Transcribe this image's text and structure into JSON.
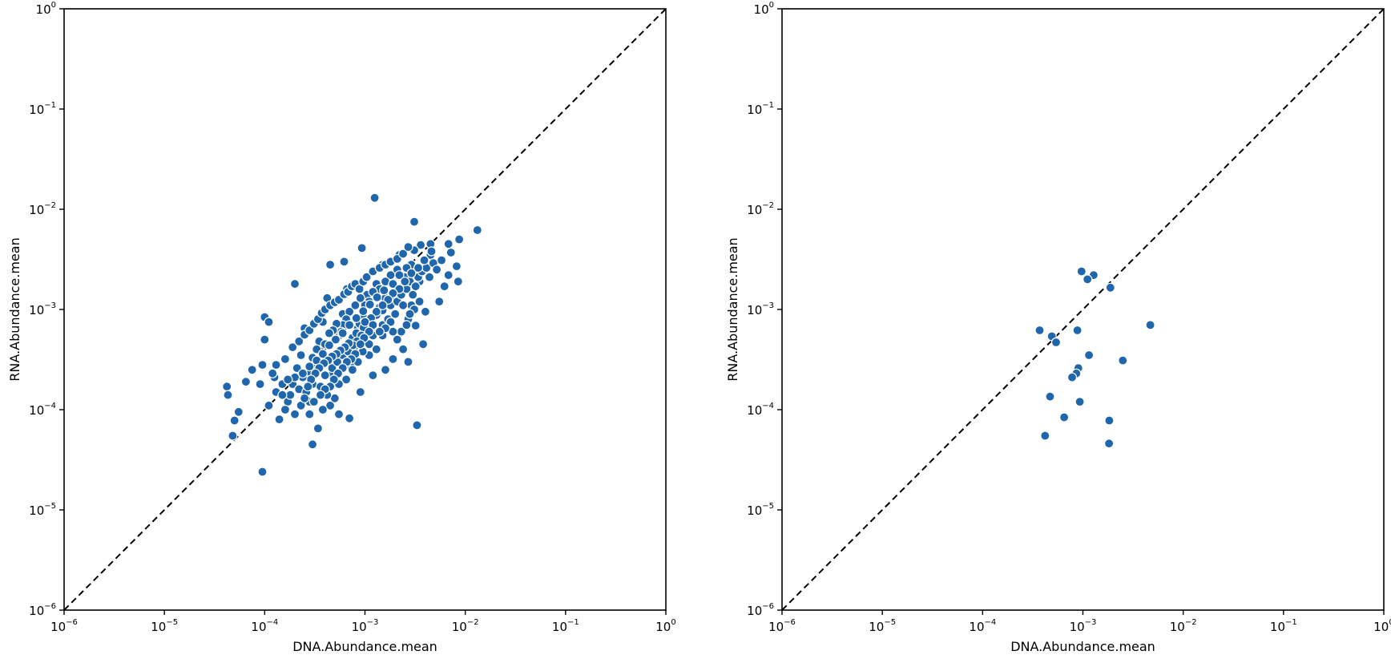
{
  "chart_data": [
    {
      "type": "scatter",
      "title": "",
      "xlabel": "DNA.Abundance.mean",
      "ylabel": "RNA.Abundance.mean",
      "xscale": "log",
      "yscale": "log",
      "xlim": [
        1e-06,
        1
      ],
      "ylim": [
        1e-06,
        1
      ],
      "xticks": [
        {
          "base": "10",
          "exp": "−6"
        },
        {
          "base": "10",
          "exp": "−5"
        },
        {
          "base": "10",
          "exp": "−4"
        },
        {
          "base": "10",
          "exp": "−3"
        },
        {
          "base": "10",
          "exp": "−2"
        },
        {
          "base": "10",
          "exp": "−1"
        },
        {
          "base": "10",
          "exp": "0"
        }
      ],
      "yticks": [
        {
          "base": "10",
          "exp": "−6"
        },
        {
          "base": "10",
          "exp": "−5"
        },
        {
          "base": "10",
          "exp": "−4"
        },
        {
          "base": "10",
          "exp": "−3"
        },
        {
          "base": "10",
          "exp": "−2"
        },
        {
          "base": "10",
          "exp": "−1"
        },
        {
          "base": "10",
          "exp": "0"
        }
      ],
      "reference_line": "y = x (dashed)",
      "grid": false,
      "marker_color": "#1f66ad",
      "points": [
        [
          0.0031,
          0.0075
        ],
        [
          0.00125,
          0.013
        ],
        [
          0.0132,
          0.0062
        ],
        [
          0.0087,
          0.005
        ],
        [
          0.0068,
          0.0045
        ],
        [
          0.0045,
          0.0045
        ],
        [
          0.0036,
          0.0044
        ],
        [
          0.0031,
          0.0039
        ],
        [
          0.0022,
          0.0035
        ],
        [
          0.0015,
          0.0028
        ],
        [
          0.00093,
          0.0041
        ],
        [
          0.00062,
          0.003
        ],
        [
          0.00045,
          0.0028
        ],
        [
          0.0045,
          0.0035
        ],
        [
          0.0072,
          0.0037
        ],
        [
          0.0082,
          0.0027
        ],
        [
          0.0068,
          0.0022
        ],
        [
          0.0062,
          0.0017
        ],
        [
          0.0085,
          0.0019
        ],
        [
          0.0035,
          0.0019
        ],
        [
          0.0055,
          0.0012
        ],
        [
          0.004,
          0.00095
        ],
        [
          0.0038,
          0.00045
        ],
        [
          0.0032,
          0.00069
        ],
        [
          0.0033,
          7e-05
        ],
        [
          0.0027,
          0.0003
        ],
        [
          0.0024,
          0.0004
        ],
        [
          0.002,
          0.0015
        ],
        [
          0.0017,
          0.0012
        ],
        [
          0.0015,
          0.0007
        ],
        [
          0.0013,
          0.0018
        ],
        [
          0.0012,
          0.00055
        ],
        [
          0.0011,
          0.00035
        ],
        [
          0.00105,
          0.0014
        ],
        [
          0.00095,
          0.00085
        ],
        [
          0.00085,
          0.00065
        ],
        [
          0.00078,
          0.00042
        ],
        [
          0.00072,
          0.00028
        ],
        [
          0.00066,
          0.0016
        ],
        [
          0.0006,
          0.0009
        ],
        [
          0.00055,
          0.00055
        ],
        [
          0.0005,
          0.00032
        ],
        [
          0.00046,
          0.00022
        ],
        [
          0.00042,
          0.0013
        ],
        [
          0.00038,
          0.00075
        ],
        [
          0.00035,
          0.00048
        ],
        [
          0.00032,
          0.00028
        ],
        [
          0.0003,
          0.00018
        ],
        [
          0.00028,
          0.00012
        ],
        [
          0.00025,
          0.00065
        ],
        [
          0.00023,
          0.00035
        ],
        [
          0.0002,
          0.0018
        ],
        [
          0.00021,
          0.00026
        ],
        [
          0.00019,
          0.00018
        ],
        [
          0.00017,
          0.00012
        ],
        [
          0.00016,
          0.0001
        ],
        [
          0.00014,
          8e-05
        ],
        [
          0.00013,
          0.00015
        ],
        [
          0.000125,
          0.00021
        ],
        [
          0.00011,
          0.00011
        ],
        [
          0.0001,
          0.00084
        ],
        [
          0.00011,
          0.00075
        ],
        [
          0.0001,
          0.0005
        ],
        [
          9.5e-05,
          0.00028
        ],
        [
          9e-05,
          0.00018
        ],
        [
          7.5e-05,
          0.00025
        ],
        [
          6.5e-05,
          0.00019
        ],
        [
          5.5e-05,
          9.5e-05
        ],
        [
          5e-05,
          7.8e-05
        ],
        [
          4.8e-05,
          5.5e-05
        ],
        [
          4.2e-05,
          0.00017
        ],
        [
          4.3e-05,
          0.00014
        ],
        [
          9.5e-05,
          2.4e-05
        ],
        [
          0.0003,
          4.5e-05
        ],
        [
          0.00034,
          6.5e-05
        ],
        [
          0.00045,
          0.00011
        ],
        [
          0.00055,
          9e-05
        ],
        [
          0.0007,
          8.2e-05
        ],
        [
          0.0009,
          0.00015
        ],
        [
          0.0012,
          0.00022
        ],
        [
          0.0016,
          0.00025
        ],
        [
          0.0019,
          0.00032
        ],
        [
          0.0023,
          0.0006
        ],
        [
          0.0027,
          0.0008
        ],
        [
          0.0029,
          0.0011
        ],
        [
          0.0025,
          0.0021
        ],
        [
          0.0021,
          0.0025
        ],
        [
          0.0018,
          0.0022
        ],
        [
          0.0016,
          0.0019
        ],
        [
          0.0014,
          0.0016
        ],
        [
          0.0012,
          0.0015
        ],
        [
          0.0011,
          0.0012
        ],
        [
          0.001,
          0.0011
        ],
        [
          0.0009,
          0.0013
        ],
        [
          0.0008,
          0.0011
        ],
        [
          0.0007,
          0.00095
        ],
        [
          0.00065,
          0.0008
        ],
        [
          0.0006,
          0.0007
        ],
        [
          0.00058,
          0.0006
        ],
        [
          0.00052,
          0.00072
        ],
        [
          0.00048,
          0.00062
        ],
        [
          0.00044,
          0.00058
        ],
        [
          0.0004,
          0.00045
        ],
        [
          0.00036,
          0.00038
        ],
        [
          0.00033,
          0.0004
        ],
        [
          0.0003,
          0.00033
        ],
        [
          0.00027,
          0.00024
        ],
        [
          0.00024,
          0.00021
        ],
        [
          0.00022,
          0.00016
        ],
        [
          0.00026,
          0.00015
        ],
        [
          0.00036,
          0.00017
        ],
        [
          0.0004,
          0.00022
        ],
        [
          0.00047,
          0.00026
        ],
        [
          0.00053,
          0.0003
        ],
        [
          0.0006,
          0.00035
        ],
        [
          0.00068,
          0.00038
        ],
        [
          0.00075,
          0.00052
        ],
        [
          0.00082,
          0.00058
        ],
        [
          0.00088,
          0.00072
        ],
        [
          0.00097,
          0.00066
        ],
        [
          0.0011,
          0.00078
        ],
        [
          0.00118,
          0.00068
        ],
        [
          0.0013,
          0.00088
        ],
        [
          0.0014,
          0.00105
        ],
        [
          0.0015,
          0.00098
        ],
        [
          0.0016,
          0.0013
        ],
        [
          0.0018,
          0.0011
        ],
        [
          0.0019,
          0.00135
        ],
        [
          0.0021,
          0.0012
        ],
        [
          0.0023,
          0.0014
        ],
        [
          0.0024,
          0.0017
        ],
        [
          0.0026,
          0.0016
        ],
        [
          0.0028,
          0.0019
        ],
        [
          0.003,
          0.0014
        ],
        [
          0.0032,
          0.0017
        ],
        [
          0.0034,
          0.0021
        ],
        [
          0.0037,
          0.0024
        ],
        [
          0.0041,
          0.0026
        ],
        [
          0.0044,
          0.0021
        ],
        [
          0.0048,
          0.0029
        ],
        [
          0.0052,
          0.0025
        ],
        [
          0.0058,
          0.0031
        ],
        [
          0.0017,
          0.0008
        ],
        [
          0.0019,
          0.0006
        ],
        [
          0.0021,
          0.0005
        ],
        [
          0.0015,
          0.00055
        ],
        [
          0.0013,
          0.0004
        ],
        [
          0.0011,
          0.00045
        ],
        [
          0.00095,
          0.00038
        ],
        [
          0.00085,
          0.0003
        ],
        [
          0.00075,
          0.00025
        ],
        [
          0.00065,
          0.0002
        ],
        [
          0.00055,
          0.00018
        ],
        [
          0.0005,
          0.00013
        ],
        [
          0.00042,
          0.00014
        ],
        [
          0.00038,
          0.0001
        ],
        [
          0.00031,
          0.00012
        ],
        [
          0.00028,
          9e-05
        ],
        [
          0.00023,
          0.00011
        ],
        [
          0.0002,
          9e-05
        ],
        [
          0.00018,
          0.00014
        ],
        [
          0.00015,
          0.00018
        ],
        [
          0.00012,
          0.00023
        ],
        [
          0.00013,
          0.00028
        ],
        [
          0.00016,
          0.00032
        ],
        [
          0.00019,
          0.00042
        ],
        [
          0.00022,
          0.00048
        ],
        [
          0.00025,
          0.00056
        ],
        [
          0.00028,
          0.00062
        ],
        [
          0.00031,
          0.00072
        ],
        [
          0.00034,
          0.0008
        ],
        [
          0.00037,
          0.00092
        ],
        [
          0.0004,
          0.001
        ],
        [
          0.00045,
          0.0011
        ],
        [
          0.0005,
          0.00118
        ],
        [
          0.00055,
          0.00125
        ],
        [
          0.00062,
          0.00142
        ],
        [
          0.00068,
          0.0015
        ],
        [
          0.00074,
          0.0017
        ],
        [
          0.0008,
          0.0018
        ],
        [
          0.00088,
          0.0016
        ],
        [
          0.00096,
          0.0019
        ],
        [
          0.00104,
          0.0021
        ],
        [
          0.0012,
          0.0024
        ],
        [
          0.0014,
          0.0026
        ],
        [
          0.0016,
          0.0028
        ],
        [
          0.0018,
          0.003
        ],
        [
          0.0021,
          0.0032
        ],
        [
          0.0024,
          0.0036
        ],
        [
          0.0027,
          0.0042
        ],
        [
          0.0029,
          0.0028
        ],
        [
          0.0026,
          0.0026
        ],
        [
          0.0022,
          0.0022
        ],
        [
          0.0019,
          0.0018
        ],
        [
          0.00155,
          0.00155
        ],
        [
          0.00132,
          0.00132
        ],
        [
          0.00112,
          0.00112
        ],
        [
          0.00096,
          0.00096
        ],
        [
          0.00082,
          0.00082
        ],
        [
          0.0007,
          0.0007
        ],
        [
          0.0006,
          0.00058
        ],
        [
          0.00051,
          0.0005
        ],
        [
          0.00044,
          0.00044
        ],
        [
          0.00038,
          0.00036
        ],
        [
          0.00033,
          0.00031
        ],
        [
          0.00028,
          0.00027
        ],
        [
          0.00024,
          0.00023
        ],
        [
          0.0002,
          0.00021
        ],
        [
          0.00017,
          0.0002
        ],
        [
          0.00015,
          0.00014
        ],
        [
          0.0046,
          0.0038
        ],
        [
          0.0039,
          0.0031
        ],
        [
          0.0034,
          0.0026
        ],
        [
          0.0029,
          0.0023
        ],
        [
          0.0025,
          0.0019
        ],
        [
          0.0022,
          0.0016
        ],
        [
          0.0019,
          0.00145
        ],
        [
          0.0017,
          0.00125
        ],
        [
          0.0015,
          0.0011
        ],
        [
          0.0013,
          0.00095
        ],
        [
          0.00115,
          0.00082
        ],
        [
          0.001,
          0.00075
        ],
        [
          0.00092,
          0.00055
        ],
        [
          0.00083,
          0.00048
        ],
        [
          0.00076,
          0.00044
        ],
        [
          0.00069,
          0.00046
        ],
        [
          0.00063,
          0.00042
        ],
        [
          0.00057,
          0.00039
        ],
        [
          0.00052,
          0.00036
        ],
        [
          0.00047,
          0.00034
        ],
        [
          0.00043,
          0.00031
        ],
        [
          0.00039,
          0.00029
        ],
        [
          0.00035,
          0.00026
        ],
        [
          0.00032,
          0.00023
        ],
        [
          0.00029,
          0.0002
        ],
        [
          0.00027,
          0.00017
        ],
        [
          0.00025,
          0.00013
        ],
        [
          0.0035,
          0.0012
        ],
        [
          0.0031,
          0.001
        ],
        [
          0.0028,
          0.0009
        ],
        [
          0.0026,
          0.0007
        ],
        [
          0.0024,
          0.0011
        ],
        [
          0.002,
          0.0009
        ],
        [
          0.0018,
          0.00075
        ],
        [
          0.0016,
          0.00065
        ],
        [
          0.0014,
          0.0006
        ],
        [
          0.0012,
          0.0007
        ],
        [
          0.0011,
          0.0006
        ],
        [
          0.00098,
          0.00052
        ],
        [
          0.0009,
          0.00045
        ],
        [
          0.0008,
          0.00036
        ],
        [
          0.00073,
          0.00032
        ],
        [
          0.00066,
          0.0003
        ],
        [
          0.0006,
          0.00026
        ],
        [
          0.00054,
          0.00023
        ],
        [
          0.00049,
          0.0002
        ],
        [
          0.00045,
          0.00017
        ],
        [
          0.0004,
          0.00016
        ],
        [
          0.00036,
          0.00014
        ]
      ]
    },
    {
      "type": "scatter",
      "title": "",
      "xlabel": "DNA.Abundance.mean",
      "ylabel": "RNA.Abundance.mean",
      "xscale": "log",
      "yscale": "log",
      "xlim": [
        1e-06,
        1
      ],
      "ylim": [
        1e-06,
        1
      ],
      "xticks": [
        {
          "base": "10",
          "exp": "−6"
        },
        {
          "base": "10",
          "exp": "−5"
        },
        {
          "base": "10",
          "exp": "−4"
        },
        {
          "base": "10",
          "exp": "−3"
        },
        {
          "base": "10",
          "exp": "−2"
        },
        {
          "base": "10",
          "exp": "−1"
        },
        {
          "base": "10",
          "exp": "0"
        }
      ],
      "yticks": [
        {
          "base": "10",
          "exp": "−6"
        },
        {
          "base": "10",
          "exp": "−5"
        },
        {
          "base": "10",
          "exp": "−4"
        },
        {
          "base": "10",
          "exp": "−3"
        },
        {
          "base": "10",
          "exp": "−2"
        },
        {
          "base": "10",
          "exp": "−1"
        },
        {
          "base": "10",
          "exp": "0"
        }
      ],
      "reference_line": "y = x (dashed)",
      "grid": false,
      "marker_color": "#1f66ad",
      "points": [
        [
          0.00097,
          0.0024
        ],
        [
          0.00128,
          0.0022
        ],
        [
          0.00111,
          0.002
        ],
        [
          0.00188,
          0.00165
        ],
        [
          0.0047,
          0.0007
        ],
        [
          0.00037,
          0.00062
        ],
        [
          0.00049,
          0.00054
        ],
        [
          0.00054,
          0.00047
        ],
        [
          0.00088,
          0.00062
        ],
        [
          0.00115,
          0.00035
        ],
        [
          0.0025,
          0.00031
        ],
        [
          0.0009,
          0.00026
        ],
        [
          0.00086,
          0.00023
        ],
        [
          0.00078,
          0.00021
        ],
        [
          0.00047,
          0.000135
        ],
        [
          0.00093,
          0.00012
        ],
        [
          0.00065,
          8.4e-05
        ],
        [
          0.00183,
          7.8e-05
        ],
        [
          0.00042,
          5.5e-05
        ],
        [
          0.00182,
          4.6e-05
        ]
      ]
    }
  ]
}
